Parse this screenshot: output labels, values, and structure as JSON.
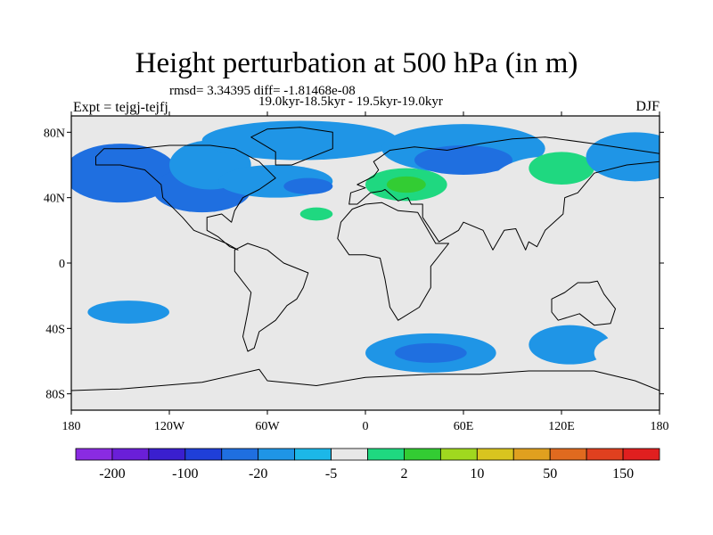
{
  "title": "Height perturbation at 500 hPa (in m)",
  "stats_line": "rmsd= 3.34395 diff= -1.81468e-08",
  "period": "19.0kyr-18.5kyr - 19.5kyr-19.0kyr",
  "experiment": "Expt = tejgj-tejfj",
  "season": "DJF",
  "map": {
    "lon_ticks": [
      {
        "lon": -180,
        "label": "180"
      },
      {
        "lon": -120,
        "label": "120W"
      },
      {
        "lon": -60,
        "label": "60W"
      },
      {
        "lon": 0,
        "label": "0"
      },
      {
        "lon": 60,
        "label": "60E"
      },
      {
        "lon": 120,
        "label": "120E"
      },
      {
        "lon": 180,
        "label": "180"
      }
    ],
    "lat_ticks": [
      {
        "lat": 80,
        "label": "80N"
      },
      {
        "lat": 40,
        "label": "40N"
      },
      {
        "lat": 0,
        "label": "0"
      },
      {
        "lat": -40,
        "label": "40S"
      },
      {
        "lat": -80,
        "label": "80S"
      }
    ],
    "lat_range": [
      -90,
      90
    ],
    "lon_range": [
      -180,
      180
    ],
    "background_color": "#e8e8e8",
    "anomaly_regions": [
      {
        "lon": -150,
        "lat": 55,
        "rlon": 35,
        "rlat": 18,
        "level": 4
      },
      {
        "lon": -100,
        "lat": 45,
        "rlon": 30,
        "rlat": 14,
        "level": 4
      },
      {
        "lon": -95,
        "lat": 60,
        "rlon": 25,
        "rlat": 15,
        "level": 5
      },
      {
        "lon": -55,
        "lat": 50,
        "rlon": 35,
        "rlat": 10,
        "level": 5
      },
      {
        "lon": -35,
        "lat": 47,
        "rlon": 15,
        "rlat": 5,
        "level": 4
      },
      {
        "lon": -30,
        "lat": 30,
        "rlon": 20,
        "rlat": 8,
        "level": 7
      },
      {
        "lon": -30,
        "lat": 30,
        "rlon": 10,
        "rlat": 4,
        "level": 8
      },
      {
        "lon": -40,
        "lat": 75,
        "rlon": 60,
        "rlat": 12,
        "level": 5
      },
      {
        "lon": 25,
        "lat": 50,
        "rlon": 40,
        "rlat": 18,
        "level": 7
      },
      {
        "lon": 25,
        "lat": 48,
        "rlon": 25,
        "rlat": 10,
        "level": 8
      },
      {
        "lon": 25,
        "lat": 48,
        "rlon": 12,
        "rlat": 5,
        "level": 9
      },
      {
        "lon": 60,
        "lat": 70,
        "rlon": 50,
        "rlat": 15,
        "level": 5
      },
      {
        "lon": 60,
        "lat": 63,
        "rlon": 30,
        "rlat": 9,
        "level": 4
      },
      {
        "lon": 110,
        "lat": 45,
        "rlon": 35,
        "rlat": 20,
        "level": 7
      },
      {
        "lon": 120,
        "lat": 58,
        "rlon": 20,
        "rlat": 10,
        "level": 8
      },
      {
        "lon": 165,
        "lat": 65,
        "rlon": 30,
        "rlat": 15,
        "level": 5
      },
      {
        "lon": -145,
        "lat": -30,
        "rlon": 25,
        "rlat": 7,
        "level": 5
      },
      {
        "lon": -150,
        "lat": -52,
        "rlon": 45,
        "rlat": 12,
        "level": 7
      },
      {
        "lon": -70,
        "lat": -45,
        "rlon": 35,
        "rlat": 8,
        "level": 7
      },
      {
        "lon": 40,
        "lat": -55,
        "rlon": 40,
        "rlat": 12,
        "level": 5
      },
      {
        "lon": 40,
        "lat": -55,
        "rlon": 22,
        "rlat": 6,
        "level": 4
      },
      {
        "lon": 125,
        "lat": -50,
        "rlon": 25,
        "rlat": 12,
        "level": 5
      },
      {
        "lon": 165,
        "lat": -55,
        "rlon": 25,
        "rlat": 12,
        "level": 7
      },
      {
        "lon": 80,
        "lat": -80,
        "rlon": 20,
        "rlat": 4,
        "level": 7
      }
    ]
  },
  "colorbar": {
    "colors": [
      "#8a2be2",
      "#6a1fd8",
      "#3a1fcf",
      "#1f3fd8",
      "#1f6fe0",
      "#1f95e6",
      "#1cb7e8",
      "#e8e8e8",
      "#1fd880",
      "#33cc33",
      "#a0d81f",
      "#d8c41f",
      "#e0a01f",
      "#e06a1f",
      "#e0401f",
      "#e01f1f"
    ],
    "labels": [
      {
        "boundary": 1,
        "text": "-200"
      },
      {
        "boundary": 3,
        "text": "-100"
      },
      {
        "boundary": 5,
        "text": "-20"
      },
      {
        "boundary": 7,
        "text": "-5"
      },
      {
        "boundary": 9,
        "text": "2"
      },
      {
        "boundary": 11,
        "text": "10"
      },
      {
        "boundary": 13,
        "text": "50"
      },
      {
        "boundary": 15,
        "text": "150"
      }
    ]
  }
}
